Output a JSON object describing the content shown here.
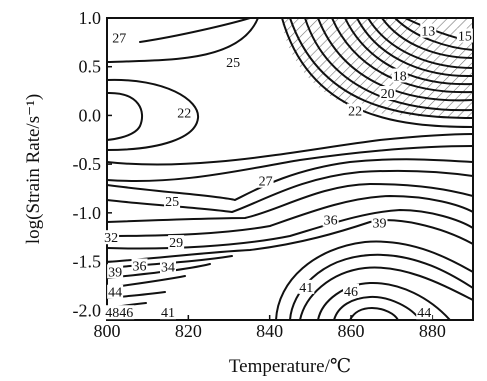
{
  "chart_data": {
    "type": "contour",
    "title": "",
    "xlabel": "Temperature/℃",
    "ylabel": "log(Strain Rate/s⁻¹)",
    "xlim": [
      800,
      890
    ],
    "ylim": [
      -2.1,
      1.0
    ],
    "x_ticks": [
      "800",
      "820",
      "840",
      "860",
      "880"
    ],
    "y_ticks": [
      "1.0",
      "0.5",
      "0.0",
      "-0.5",
      "-1.0",
      "-1.5",
      "-2.0"
    ],
    "hatched_region": {
      "description": "instability domain",
      "x_range": [
        842,
        890
      ],
      "y_range": [
        0.05,
        1.0
      ]
    },
    "contour_labels": [
      {
        "text": "27",
        "x": 803,
        "y": 0.8
      },
      {
        "text": "25",
        "x": 831,
        "y": 0.55
      },
      {
        "text": "13",
        "x": 879,
        "y": 0.87
      },
      {
        "text": "15",
        "x": 888,
        "y": 0.82
      },
      {
        "text": "18",
        "x": 872,
        "y": 0.41
      },
      {
        "text": "20",
        "x": 869,
        "y": 0.23
      },
      {
        "text": "22",
        "x": 861,
        "y": 0.05
      },
      {
        "text": "22",
        "x": 819,
        "y": 0.03
      },
      {
        "text": "27",
        "x": 839,
        "y": -0.67
      },
      {
        "text": "25",
        "x": 816,
        "y": -0.88
      },
      {
        "text": "36",
        "x": 855,
        "y": -1.07
      },
      {
        "text": "39",
        "x": 867,
        "y": -1.1
      },
      {
        "text": "32",
        "x": 801,
        "y": -1.25
      },
      {
        "text": "29",
        "x": 817,
        "y": -1.3
      },
      {
        "text": "39",
        "x": 802,
        "y": -1.6
      },
      {
        "text": "36",
        "x": 808,
        "y": -1.54
      },
      {
        "text": "34",
        "x": 815,
        "y": -1.55
      },
      {
        "text": "44",
        "x": 802,
        "y": -1.81
      },
      {
        "text": "41",
        "x": 849,
        "y": -1.76
      },
      {
        "text": "46",
        "x": 860,
        "y": -1.8
      },
      {
        "text": "4846",
        "x": 803,
        "y": -2.02
      },
      {
        "text": "41",
        "x": 815,
        "y": -2.02
      },
      {
        "text": "44",
        "x": 878,
        "y": -2.02
      }
    ]
  }
}
